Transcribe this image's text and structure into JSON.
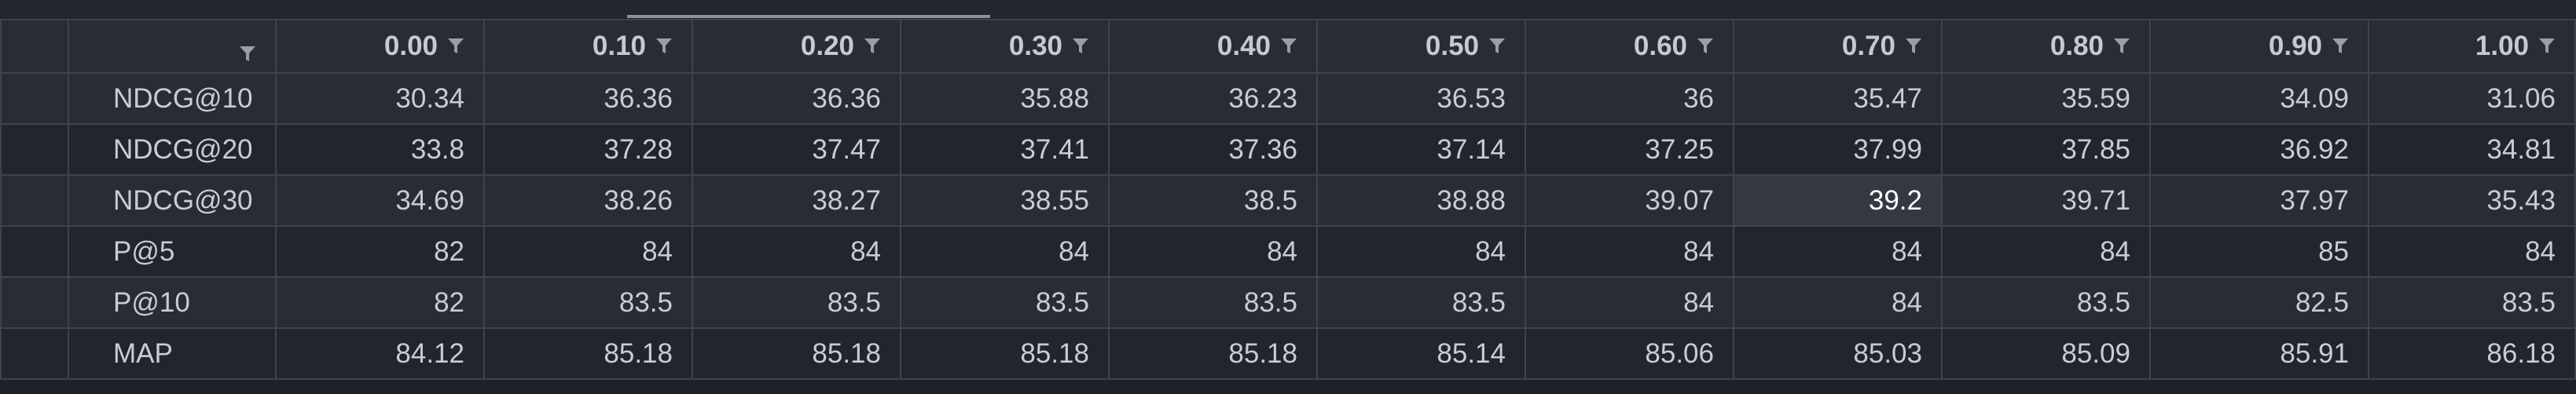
{
  "table": {
    "filter_icon": "filter-icon",
    "columns": [
      "",
      "0.00",
      "0.10",
      "0.20",
      "0.30",
      "0.40",
      "0.50",
      "0.60",
      "0.70",
      "0.80",
      "0.90",
      "1.00"
    ],
    "rows": [
      {
        "label": "NDCG@10",
        "values": [
          "30.34",
          "36.36",
          "36.36",
          "35.88",
          "36.23",
          "36.53",
          "36",
          "35.47",
          "35.59",
          "34.09",
          "31.06"
        ]
      },
      {
        "label": "NDCG@20",
        "values": [
          "33.8",
          "37.28",
          "37.47",
          "37.41",
          "37.36",
          "37.14",
          "37.25",
          "37.99",
          "37.85",
          "36.92",
          "34.81"
        ]
      },
      {
        "label": "NDCG@30",
        "values": [
          "34.69",
          "38.26",
          "38.27",
          "38.55",
          "38.5",
          "38.88",
          "39.07",
          "39.2",
          "39.71",
          "37.97",
          "35.43"
        ]
      },
      {
        "label": "P@5",
        "values": [
          "82",
          "84",
          "84",
          "84",
          "84",
          "84",
          "84",
          "84",
          "84",
          "85",
          "84"
        ]
      },
      {
        "label": "P@10",
        "values": [
          "82",
          "83.5",
          "83.5",
          "83.5",
          "83.5",
          "83.5",
          "84",
          "84",
          "83.5",
          "82.5",
          "83.5"
        ]
      },
      {
        "label": "MAP",
        "values": [
          "84.12",
          "85.18",
          "85.18",
          "85.18",
          "85.18",
          "85.14",
          "85.06",
          "85.03",
          "85.09",
          "85.91",
          "86.18"
        ]
      }
    ],
    "highlighted_cell": {
      "row": 2,
      "col": 7
    }
  }
}
